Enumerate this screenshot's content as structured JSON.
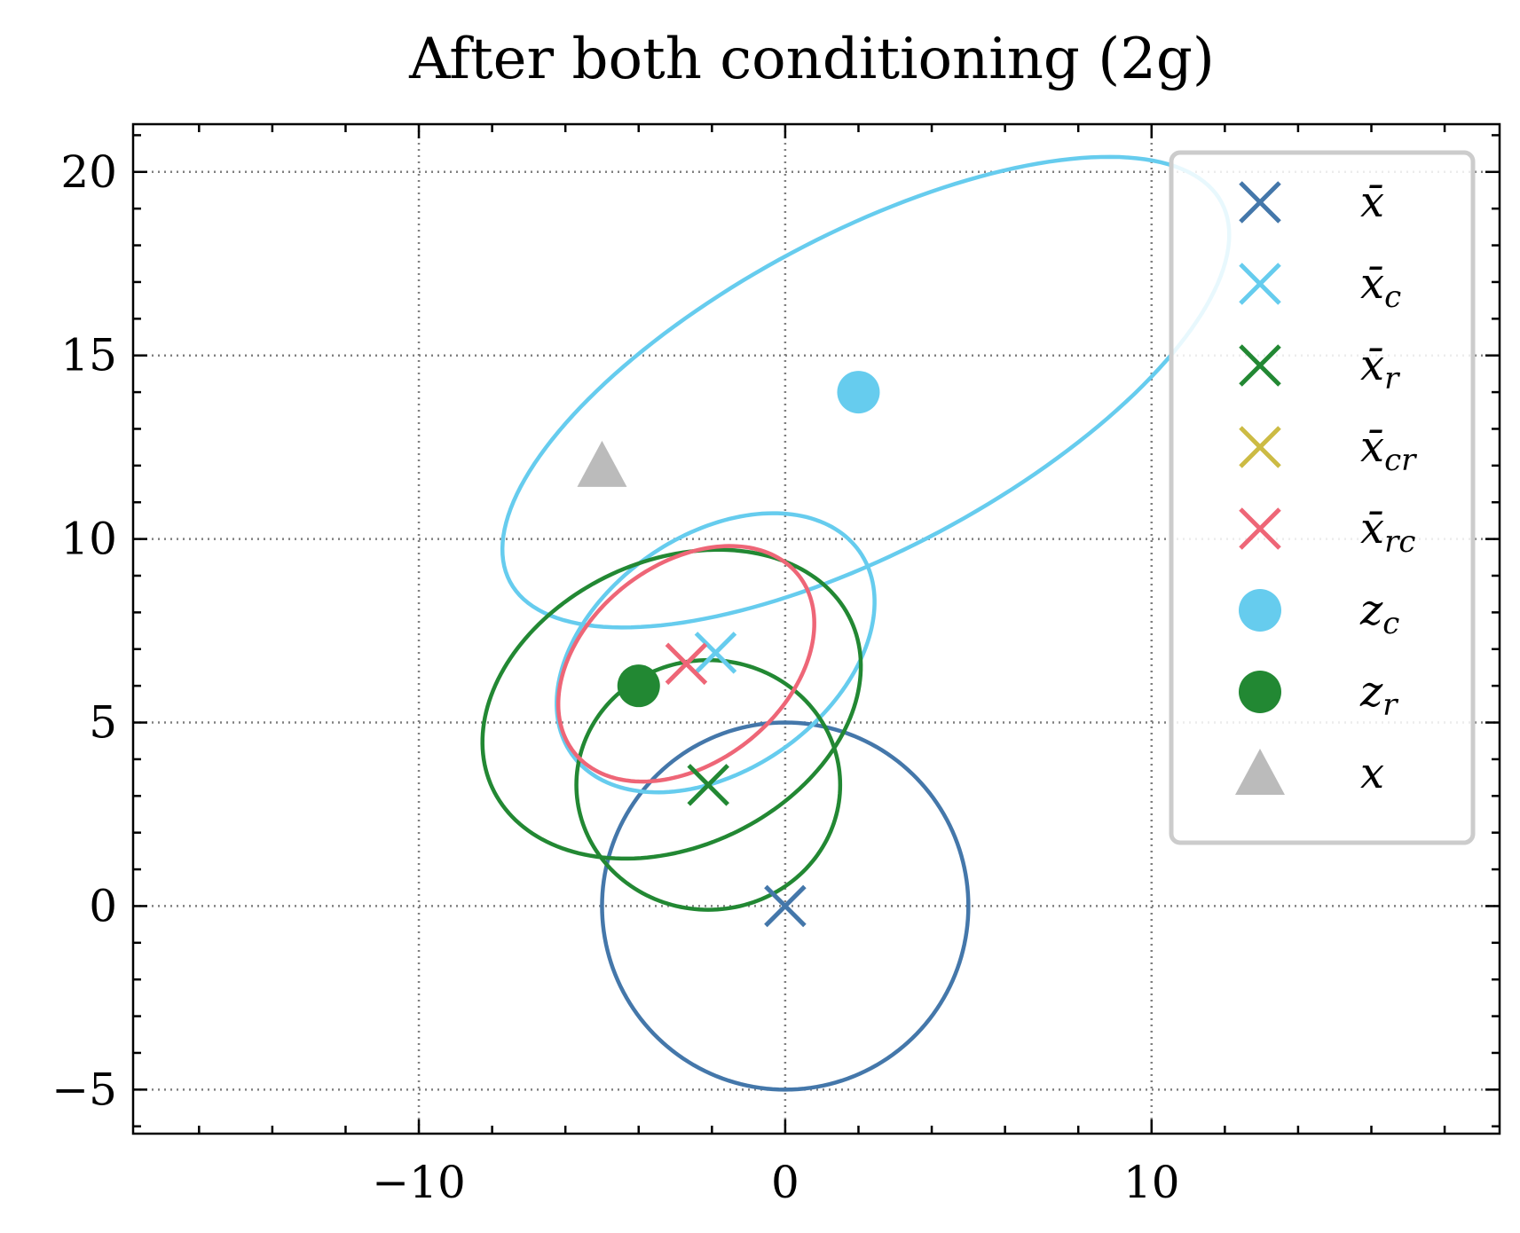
{
  "chart_data": {
    "type": "scatter",
    "title": "After both conditioning (2g)",
    "xlabel": "",
    "ylabel": "",
    "xlim": [
      -17.8,
      19.5
    ],
    "ylim": [
      -6.2,
      21.3
    ],
    "xticks": [
      -10,
      0,
      10
    ],
    "yticks": [
      -5,
      0,
      5,
      10,
      15,
      20
    ],
    "xtick_labels": [
      "−10",
      "0",
      "10"
    ],
    "ytick_labels": [
      "−5",
      "0",
      "5",
      "10",
      "15",
      "20"
    ],
    "grid": true,
    "legend_position": "top-right",
    "colors": {
      "xbar": "#4477AA",
      "xbar_c": "#66CCEE",
      "xbar_r": "#228833",
      "xbar_cr": "#CCBB44",
      "xbar_rc": "#EE6677",
      "z_c": "#66CCEE",
      "z_r": "#228833",
      "x": "#BBBBBB"
    },
    "legend": [
      {
        "key": "xbar",
        "base": "x̄",
        "sub": "",
        "marker": "x",
        "color": "#4477AA"
      },
      {
        "key": "xbar_c",
        "base": "x̄",
        "sub": "c",
        "marker": "x",
        "color": "#66CCEE"
      },
      {
        "key": "xbar_r",
        "base": "x̄",
        "sub": "r",
        "marker": "x",
        "color": "#228833"
      },
      {
        "key": "xbar_cr",
        "base": "x̄",
        "sub": "cr",
        "marker": "x",
        "color": "#CCBB44"
      },
      {
        "key": "xbar_rc",
        "base": "x̄",
        "sub": "rc",
        "marker": "x",
        "color": "#EE6677"
      },
      {
        "key": "z_c",
        "base": "z",
        "sub": "c",
        "marker": "o",
        "color": "#66CCEE"
      },
      {
        "key": "z_r",
        "base": "z",
        "sub": "r",
        "marker": "o",
        "color": "#228833"
      },
      {
        "key": "x",
        "base": "x",
        "sub": "",
        "marker": "^",
        "color": "#BBBBBB"
      }
    ],
    "points": [
      {
        "key": "xbar",
        "marker": "x",
        "color": "#4477AA",
        "x": 0,
        "y": 0
      },
      {
        "key": "xbar_c",
        "marker": "x",
        "color": "#66CCEE",
        "x": -1.9,
        "y": 6.9
      },
      {
        "key": "xbar_r",
        "marker": "x",
        "color": "#228833",
        "x": -2.1,
        "y": 3.3
      },
      {
        "key": "xbar_rc",
        "marker": "x",
        "color": "#EE6677",
        "x": -2.7,
        "y": 6.6
      },
      {
        "key": "z_c",
        "marker": "o",
        "color": "#66CCEE",
        "x": 2.0,
        "y": 14.0
      },
      {
        "key": "z_r",
        "marker": "o",
        "color": "#228833",
        "x": -4.0,
        "y": 6.0
      },
      {
        "key": "x",
        "marker": "^",
        "color": "#BBBBBB",
        "x": -5.0,
        "y": 12.0
      }
    ],
    "ellipses": [
      {
        "key": "xbar",
        "color": "#4477AA",
        "center": [
          0,
          0
        ],
        "semi_axes": [
          5.0,
          5.0
        ],
        "angle_deg": 0
      },
      {
        "key": "xbar_c",
        "color": "#66CCEE",
        "center": [
          2.2,
          14.0
        ],
        "semi_axes": [
          11.0,
          4.3
        ],
        "angle_deg": 28
      },
      {
        "key": "xbar_c",
        "color": "#66CCEE",
        "center": [
          -1.9,
          6.9
        ],
        "semi_axes": [
          4.8,
          3.2
        ],
        "angle_deg": 35
      },
      {
        "key": "xbar_r",
        "color": "#228833",
        "center": [
          -3.1,
          5.5
        ],
        "semi_axes": [
          5.4,
          3.9
        ],
        "angle_deg": 25
      },
      {
        "key": "xbar_r",
        "color": "#228833",
        "center": [
          -2.1,
          3.3
        ],
        "semi_axes": [
          3.6,
          3.4
        ],
        "angle_deg": 0
      },
      {
        "key": "xbar_rc",
        "color": "#EE6677",
        "center": [
          -2.7,
          6.6
        ],
        "semi_axes": [
          3.9,
          2.7
        ],
        "angle_deg": 38
      }
    ]
  }
}
